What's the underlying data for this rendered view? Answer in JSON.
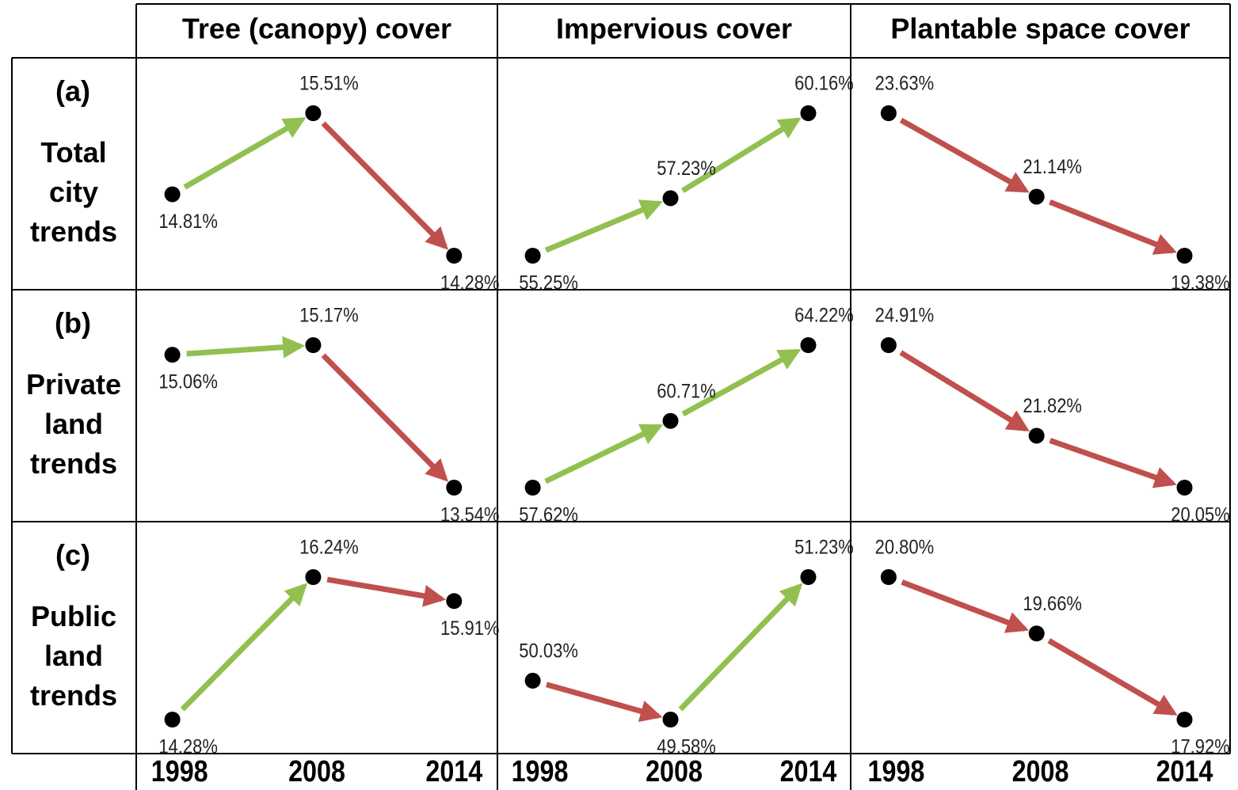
{
  "columns": [
    {
      "title": "Tree (canopy) cover",
      "categories": [
        1998,
        2008,
        2014
      ]
    },
    {
      "title": "Impervious cover",
      "categories": [
        1998,
        2008,
        2014
      ]
    },
    {
      "title": "Plantable space cover",
      "categories": [
        1998,
        2008,
        2014
      ]
    }
  ],
  "rows": [
    {
      "label": "(a)",
      "name": "Total city trends"
    },
    {
      "label": "(b)",
      "name": "Private land trends"
    },
    {
      "label": "(c)",
      "name": "Public land trends"
    }
  ],
  "increase_color": "#92c050",
  "decrease_color": "#c0504d",
  "point_color": "#000000",
  "chart_data": [
    {
      "type": "line",
      "values": [
        14.81,
        15.51,
        14.28
      ],
      "value_labels": [
        "14.81%",
        "15.51%",
        "14.28%"
      ]
    },
    {
      "type": "line",
      "values": [
        55.25,
        57.23,
        60.16
      ],
      "value_labels": [
        "55.25%",
        "57.23%",
        "60.16%"
      ]
    },
    {
      "type": "line",
      "values": [
        23.63,
        21.14,
        19.38
      ],
      "value_labels": [
        "23.63%",
        "21.14%",
        "19.38%"
      ]
    },
    {
      "type": "line",
      "values": [
        15.06,
        15.17,
        13.54
      ],
      "value_labels": [
        "15.06%",
        "15.17%",
        "13.54%"
      ]
    },
    {
      "type": "line",
      "values": [
        57.62,
        60.71,
        64.22
      ],
      "value_labels": [
        "57.62%",
        "60.71%",
        "64.22%"
      ]
    },
    {
      "type": "line",
      "values": [
        24.91,
        21.82,
        20.05
      ],
      "value_labels": [
        "24.91%",
        "21.82%",
        "20.05%"
      ]
    },
    {
      "type": "line",
      "values": [
        14.28,
        16.24,
        15.91
      ],
      "value_labels": [
        "14.28%",
        "16.24%",
        "15.91%"
      ]
    },
    {
      "type": "line",
      "values": [
        50.03,
        49.58,
        51.23
      ],
      "value_labels": [
        "50.03%",
        "49.58%",
        "51.23%"
      ]
    },
    {
      "type": "line",
      "values": [
        20.8,
        19.66,
        17.92
      ],
      "value_labels": [
        "20.80%",
        "19.66%",
        "17.92%"
      ]
    }
  ]
}
